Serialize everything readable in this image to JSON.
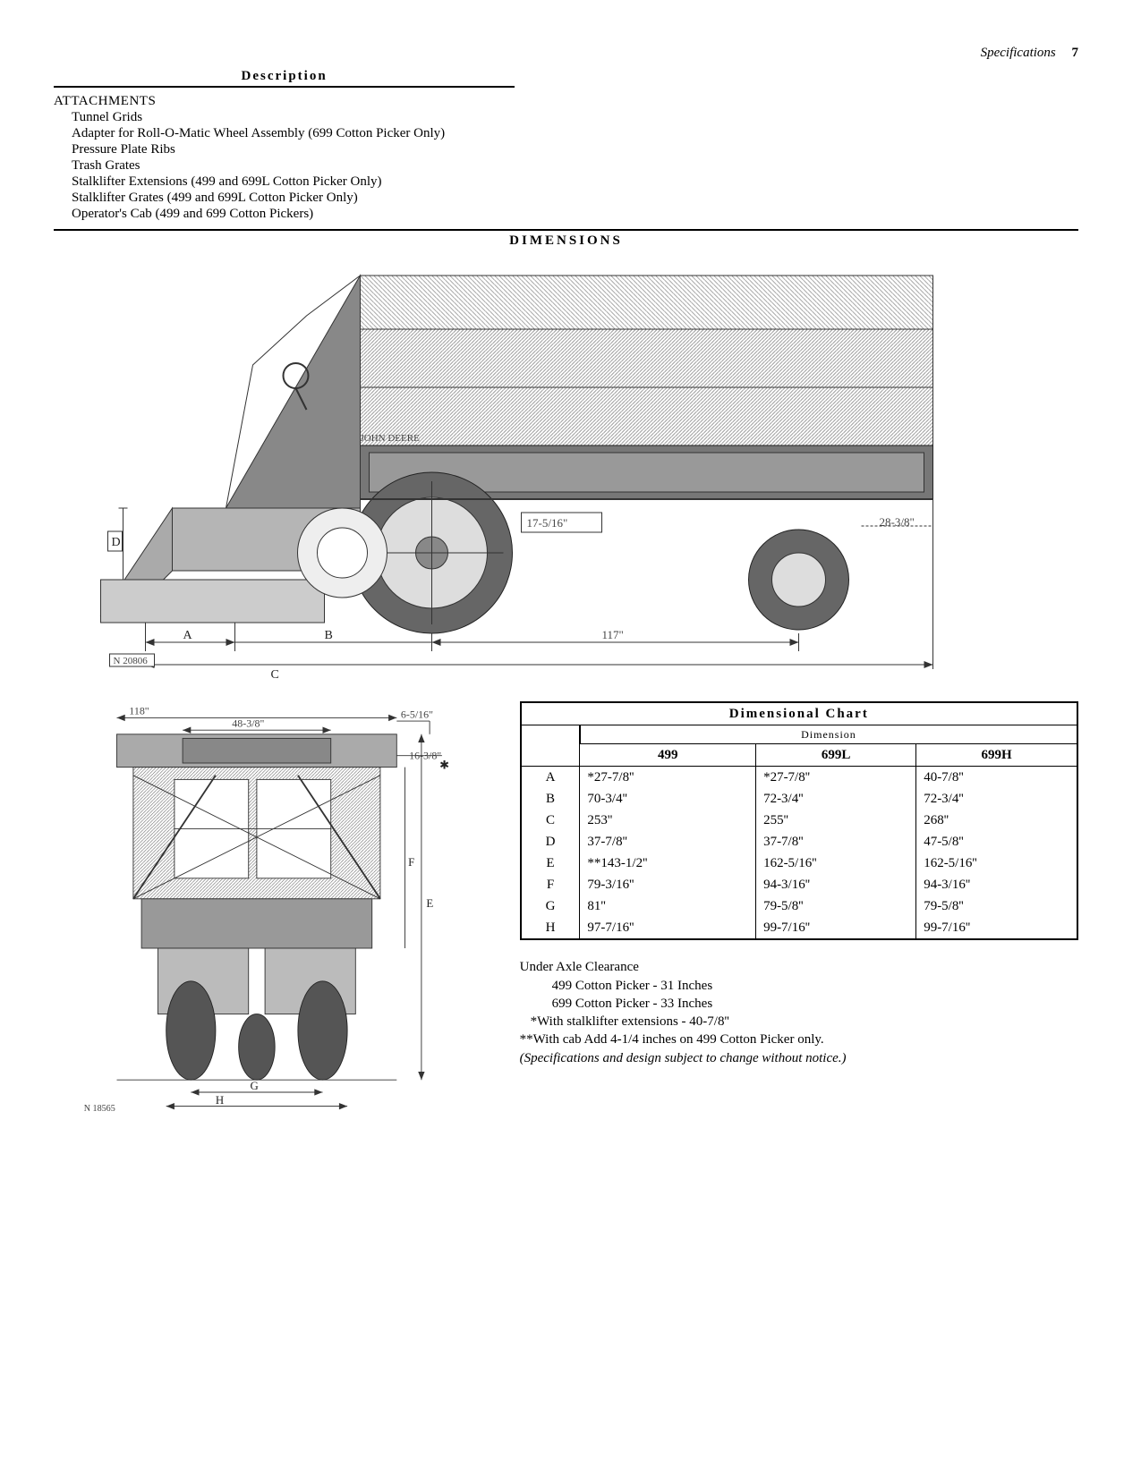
{
  "header": {
    "section_label": "Specifications",
    "page_number": "7"
  },
  "description": {
    "heading": "Description",
    "attachments_heading": "ATTACHMENTS",
    "attachments": [
      "Tunnel Grids",
      "Adapter for Roll-O-Matic Wheel Assembly (699 Cotton Picker Only)",
      "Pressure Plate Ribs",
      "Trash Grates",
      "Stalklifter Extensions (499 and 699L Cotton Picker Only)",
      "Stalklifter Grates (499 and 699L Cotton Picker Only)",
      "Operator's Cab (499 and 699 Cotton Pickers)"
    ]
  },
  "dimensions_heading": "DIMENSIONS",
  "side_figure": {
    "caption_code": "N 20806",
    "brand_text": "JOHN DEERE",
    "dim_labels": {
      "A": "A",
      "B": "B",
      "C": "C",
      "D": "D"
    },
    "callouts": {
      "wheelbase": "117\"",
      "front_wheel_label": "17-5/16\"",
      "rear_wheel_label": "28-3/8\""
    }
  },
  "front_figure": {
    "caption_code": "N 18565",
    "dim_labels": {
      "E": "E",
      "F": "F",
      "G": "G",
      "H": "H"
    },
    "callouts": {
      "top_width": "118\"",
      "cab_width": "48-3/8\"",
      "thickness": "6-5/16\"",
      "side_offset": "16-3/8\""
    }
  },
  "dim_chart": {
    "title": "Dimensional Chart",
    "subheading": "Dimension",
    "columns": [
      "499",
      "699L",
      "699H"
    ],
    "rows": [
      {
        "key": "A",
        "values": [
          "*27-7/8''",
          "*27-7/8''",
          "40-7/8''"
        ]
      },
      {
        "key": "B",
        "values": [
          "70-3/4''",
          "72-3/4''",
          "72-3/4''"
        ]
      },
      {
        "key": "C",
        "values": [
          "253''",
          "255''",
          "268''"
        ]
      },
      {
        "key": "D",
        "values": [
          "37-7/8''",
          "37-7/8''",
          "47-5/8''"
        ]
      },
      {
        "key": "E",
        "values": [
          "**143-1/2''",
          "162-5/16''",
          "162-5/16''"
        ]
      },
      {
        "key": "F",
        "values": [
          "79-3/16''",
          "94-3/16''",
          "94-3/16''"
        ]
      },
      {
        "key": "G",
        "values": [
          "81''",
          "79-5/8''",
          "79-5/8''"
        ]
      },
      {
        "key": "H",
        "values": [
          "97-7/16''",
          "99-7/16''",
          "99-7/16''"
        ]
      }
    ]
  },
  "notes": {
    "lines": [
      {
        "text": "Under Axle Clearance",
        "indent": 0
      },
      {
        "text": "499 Cotton Picker  -  31 Inches",
        "indent": 1
      },
      {
        "text": "699 Cotton Picker  -  33 Inches",
        "indent": 1
      },
      {
        "text": "*With stalklifter extensions - 40-7/8''",
        "indent": 0
      },
      {
        "text": "**With cab Add 4-1/4 inches on 499 Cotton Picker only.",
        "indent": 0
      }
    ],
    "footnote": "(Specifications and design subject to change without notice.)"
  }
}
